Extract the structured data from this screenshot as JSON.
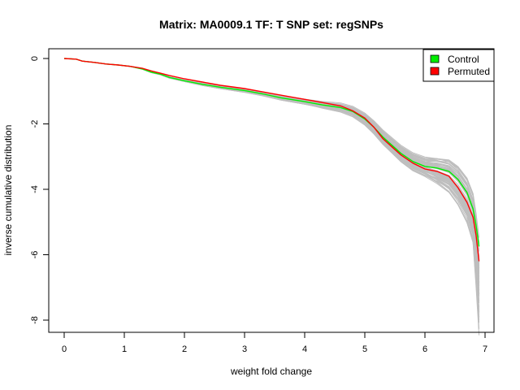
{
  "chart_data": {
    "type": "line",
    "title": "Matrix: MA0009.1 TF: T SNP set: regSNPs",
    "xlabel": "weight fold change",
    "ylabel": "inverse cumulative distribution",
    "xlim": [
      0,
      7
    ],
    "ylim": [
      -8,
      0
    ],
    "x_ticks": [
      "0",
      "1",
      "2",
      "3",
      "4",
      "5",
      "6",
      "7"
    ],
    "y_ticks": [
      "0",
      "-2",
      "-4",
      "-6",
      "-8"
    ],
    "grid": false,
    "legend_position": "top-right",
    "colors": {
      "control": "#00ee00",
      "permuted": "#ff0000",
      "background_lines": "#bebebe"
    },
    "legend": [
      {
        "label": "Control",
        "color": "#00ee00"
      },
      {
        "label": "Permuted",
        "color": "#ff0000"
      }
    ],
    "series": [
      {
        "name": "Control",
        "x": [
          0.0,
          0.2,
          0.3,
          0.5,
          0.7,
          0.9,
          1.1,
          1.3,
          1.45,
          1.6,
          1.75,
          2.0,
          2.3,
          2.6,
          3.0,
          3.3,
          3.6,
          4.0,
          4.3,
          4.6,
          4.8,
          5.0,
          5.15,
          5.3,
          5.45,
          5.6,
          5.8,
          6.0,
          6.2,
          6.4,
          6.55,
          6.7,
          6.8,
          6.85,
          6.9
        ],
        "y": [
          0.0,
          -0.02,
          -0.08,
          -0.12,
          -0.17,
          -0.2,
          -0.24,
          -0.32,
          -0.42,
          -0.48,
          -0.58,
          -0.68,
          -0.79,
          -0.88,
          -0.98,
          -1.08,
          -1.2,
          -1.32,
          -1.42,
          -1.5,
          -1.62,
          -1.85,
          -2.1,
          -2.4,
          -2.65,
          -2.9,
          -3.15,
          -3.3,
          -3.35,
          -3.45,
          -3.7,
          -4.1,
          -4.6,
          -5.1,
          -5.75
        ]
      },
      {
        "name": "Permuted",
        "x": [
          0.0,
          0.2,
          0.3,
          0.5,
          0.7,
          0.9,
          1.1,
          1.3,
          1.45,
          1.6,
          1.75,
          2.0,
          2.3,
          2.6,
          3.0,
          3.3,
          3.6,
          4.0,
          4.3,
          4.6,
          4.8,
          5.0,
          5.15,
          5.3,
          5.45,
          5.6,
          5.8,
          6.0,
          6.2,
          6.4,
          6.55,
          6.7,
          6.8,
          6.85,
          6.9
        ],
        "y": [
          0.0,
          -0.02,
          -0.08,
          -0.12,
          -0.17,
          -0.2,
          -0.24,
          -0.3,
          -0.38,
          -0.45,
          -0.52,
          -0.62,
          -0.72,
          -0.82,
          -0.92,
          -1.02,
          -1.12,
          -1.25,
          -1.35,
          -1.45,
          -1.6,
          -1.82,
          -2.1,
          -2.45,
          -2.7,
          -2.95,
          -3.2,
          -3.38,
          -3.45,
          -3.6,
          -3.95,
          -4.4,
          -4.85,
          -5.4,
          -6.2
        ]
      }
    ]
  }
}
